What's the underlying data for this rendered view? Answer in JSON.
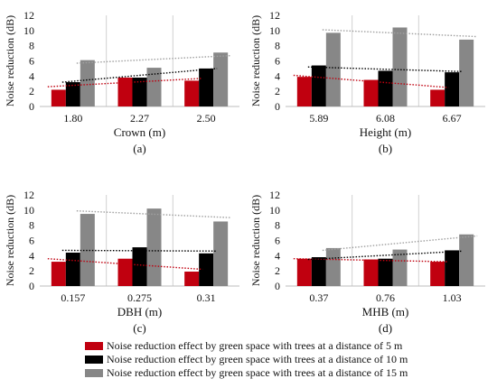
{
  "colors": {
    "series_5m": "#c0000f",
    "series_10m": "#000000",
    "series_15m": "#878787",
    "trend_5m": "#c0000f",
    "trend_10m": "#000000",
    "trend_15m": "#a0a0a0",
    "gridline": "#d0d0d0"
  },
  "legend": {
    "items": [
      "Noise reduction effect by green space with trees at a distance of 5 m",
      "Noise reduction effect by green space with trees at a distance of 10 m",
      "Noise reduction effect by green space with trees at a distance of 15 m"
    ]
  },
  "chart_data": [
    {
      "type": "bar",
      "panel_label": "(a)",
      "xlabel": "Crown (m)",
      "ylabel": "Noise reduction (dB)",
      "ylim": [
        0,
        12
      ],
      "yticks": [
        "0",
        "2",
        "4",
        "6",
        "8",
        "10",
        "12"
      ],
      "categories": [
        "1.80",
        "2.27",
        "2.50"
      ],
      "series": [
        {
          "name": "Noise reduction effect by green space with trees at a distance of 5 m",
          "values": [
            2.2,
            3.8,
            3.4
          ]
        },
        {
          "name": "Noise reduction effect by green space with trees at a distance of 10 m",
          "values": [
            3.2,
            3.8,
            5.0
          ]
        },
        {
          "name": "Noise reduction effect by green space with trees at a distance of 15 m",
          "values": [
            6.1,
            5.1,
            7.1
          ]
        }
      ],
      "trendlines": [
        {
          "series": 0,
          "values": [
            2.6,
            3.7
          ]
        },
        {
          "series": 1,
          "values": [
            3.2,
            5.0
          ]
        },
        {
          "series": 2,
          "values": [
            5.7,
            6.7
          ]
        }
      ],
      "grid": "vertical"
    },
    {
      "type": "bar",
      "panel_label": "(b)",
      "xlabel": "Height (m)",
      "ylabel": "Noise reduction (dB)",
      "ylim": [
        0,
        12
      ],
      "yticks": [
        "0",
        "2",
        "4",
        "6",
        "8",
        "10",
        "12"
      ],
      "categories": [
        "5.89",
        "6.08",
        "6.67"
      ],
      "series": [
        {
          "name": "Noise reduction effect by green space with trees at a distance of 5 m",
          "values": [
            3.9,
            3.5,
            2.2
          ]
        },
        {
          "name": "Noise reduction effect by green space with trees at a distance of 10 m",
          "values": [
            5.4,
            4.7,
            4.5
          ]
        },
        {
          "name": "Noise reduction effect by green space with trees at a distance of 15 m",
          "values": [
            9.7,
            10.4,
            8.8
          ]
        }
      ],
      "trendlines": [
        {
          "series": 0,
          "values": [
            4.1,
            2.5
          ]
        },
        {
          "series": 1,
          "values": [
            5.2,
            4.6
          ]
        },
        {
          "series": 2,
          "values": [
            10.1,
            9.2
          ]
        }
      ],
      "grid": "vertical"
    },
    {
      "type": "bar",
      "panel_label": "(c)",
      "xlabel": "DBH (m)",
      "ylabel": "Noise reduction (dB)",
      "ylim": [
        0,
        12
      ],
      "yticks": [
        "0",
        "2",
        "4",
        "6",
        "8",
        "10",
        "12"
      ],
      "categories": [
        "0.157",
        "0.275",
        "0.31"
      ],
      "series": [
        {
          "name": "Noise reduction effect by green space with trees at a distance of 5 m",
          "values": [
            3.2,
            3.6,
            1.9
          ]
        },
        {
          "name": "Noise reduction effect by green space with trees at a distance of 10 m",
          "values": [
            4.4,
            5.1,
            4.3
          ]
        },
        {
          "name": "Noise reduction effect by green space with trees at a distance of 15 m",
          "values": [
            9.5,
            10.2,
            8.5
          ]
        }
      ],
      "trendlines": [
        {
          "series": 0,
          "values": [
            3.6,
            2.2
          ]
        },
        {
          "series": 1,
          "values": [
            4.7,
            4.6
          ]
        },
        {
          "series": 2,
          "values": [
            9.9,
            9.0
          ]
        }
      ],
      "grid": "vertical"
    },
    {
      "type": "bar",
      "panel_label": "(d)",
      "xlabel": "MHB (m)",
      "ylabel": "Noise reduction (dB)",
      "ylim": [
        0,
        12
      ],
      "yticks": [
        "0",
        "2",
        "4",
        "6",
        "8",
        "10",
        "12"
      ],
      "categories": [
        "0.37",
        "0.76",
        "1.03"
      ],
      "series": [
        {
          "name": "Noise reduction effect by green space with trees at a distance of 5 m",
          "values": [
            3.6,
            3.5,
            3.2
          ]
        },
        {
          "name": "Noise reduction effect by green space with trees at a distance of 10 m",
          "values": [
            3.8,
            3.6,
            4.7
          ]
        },
        {
          "name": "Noise reduction effect by green space with trees at a distance of 15 m",
          "values": [
            5.0,
            4.8,
            6.8
          ]
        }
      ],
      "trendlines": [
        {
          "series": 0,
          "values": [
            3.6,
            3.2
          ]
        },
        {
          "series": 1,
          "values": [
            3.5,
            4.6
          ]
        },
        {
          "series": 2,
          "values": [
            4.7,
            6.6
          ]
        }
      ],
      "grid": "vertical"
    }
  ]
}
